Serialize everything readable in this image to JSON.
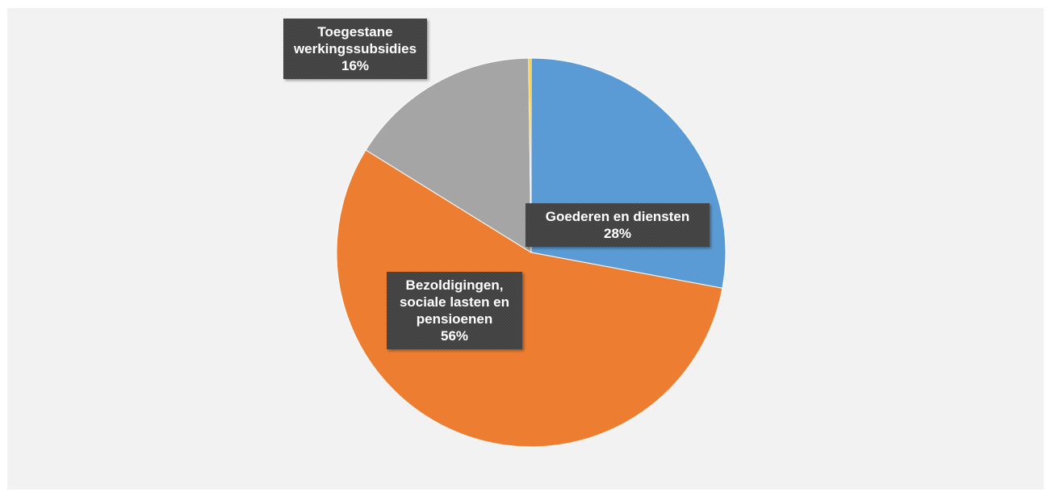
{
  "chart_data": {
    "type": "pie",
    "title": "",
    "slices": [
      {
        "name": "Goederen en diensten",
        "value": 28,
        "label_lines": [
          "Goederen en diensten",
          "28%"
        ],
        "color": "#5b9bd5"
      },
      {
        "name": "Bezoldigingen, sociale lasten en pensioenen",
        "value": 56,
        "label_lines": [
          "Bezoldigingen,",
          "sociale lasten en",
          "pensioenen",
          "56%"
        ],
        "color": "#ed7d31"
      },
      {
        "name": "Toegestane werkingssubsidies",
        "value": 16,
        "label_lines": [
          "Toegestane",
          "werkingssubsidies",
          "16%"
        ],
        "color": "#a5a5a5"
      },
      {
        "name": "",
        "value": 0.2,
        "label_lines": [],
        "color": "#ffc000"
      }
    ],
    "legend": "none",
    "label_style": {
      "background": "#404040",
      "text_color": "#ffffff"
    }
  }
}
